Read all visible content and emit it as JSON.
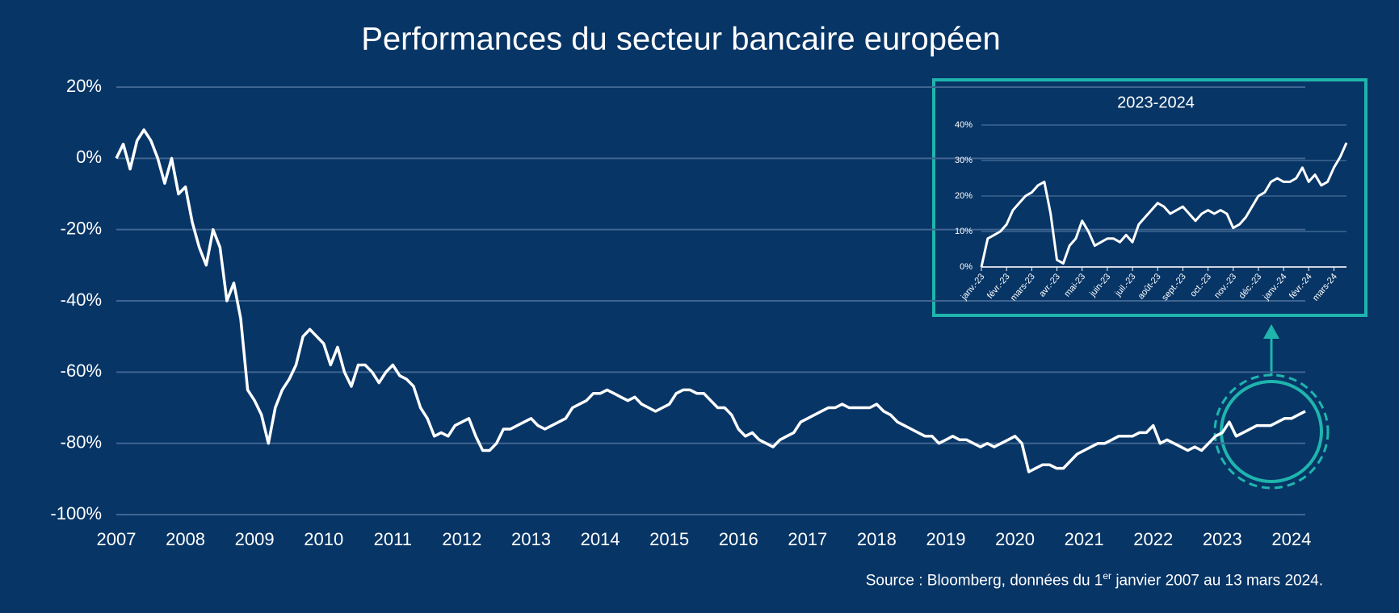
{
  "chart_data": [
    {
      "type": "line",
      "title": "Performances du secteur bancaire européen",
      "x": [
        2007.0,
        2007.1,
        2007.2,
        2007.3,
        2007.4,
        2007.5,
        2007.6,
        2007.7,
        2007.8,
        2007.9,
        2008.0,
        2008.1,
        2008.2,
        2008.3,
        2008.4,
        2008.5,
        2008.6,
        2008.7,
        2008.8,
        2008.9,
        2009.0,
        2009.1,
        2009.2,
        2009.3,
        2009.4,
        2009.5,
        2009.6,
        2009.7,
        2009.8,
        2009.9,
        2010.0,
        2010.1,
        2010.2,
        2010.3,
        2010.4,
        2010.5,
        2010.6,
        2010.7,
        2010.8,
        2010.9,
        2011.0,
        2011.1,
        2011.2,
        2011.3,
        2011.4,
        2011.5,
        2011.6,
        2011.7,
        2011.8,
        2011.9,
        2012.0,
        2012.1,
        2012.2,
        2012.3,
        2012.4,
        2012.5,
        2012.6,
        2012.7,
        2012.8,
        2012.9,
        2013.0,
        2013.1,
        2013.2,
        2013.3,
        2013.4,
        2013.5,
        2013.6,
        2013.7,
        2013.8,
        2013.9,
        2014.0,
        2014.1,
        2014.2,
        2014.3,
        2014.4,
        2014.5,
        2014.6,
        2014.7,
        2014.8,
        2014.9,
        2015.0,
        2015.1,
        2015.2,
        2015.3,
        2015.4,
        2015.5,
        2015.6,
        2015.7,
        2015.8,
        2015.9,
        2016.0,
        2016.1,
        2016.2,
        2016.3,
        2016.4,
        2016.5,
        2016.6,
        2016.7,
        2016.8,
        2016.9,
        2017.0,
        2017.1,
        2017.2,
        2017.3,
        2017.4,
        2017.5,
        2017.6,
        2017.7,
        2017.8,
        2017.9,
        2018.0,
        2018.1,
        2018.2,
        2018.3,
        2018.4,
        2018.5,
        2018.6,
        2018.7,
        2018.8,
        2018.9,
        2019.0,
        2019.1,
        2019.2,
        2019.3,
        2019.4,
        2019.5,
        2019.6,
        2019.7,
        2019.8,
        2019.9,
        2020.0,
        2020.1,
        2020.2,
        2020.3,
        2020.4,
        2020.5,
        2020.6,
        2020.7,
        2020.8,
        2020.9,
        2021.0,
        2021.1,
        2021.2,
        2021.3,
        2021.4,
        2021.5,
        2021.6,
        2021.7,
        2021.8,
        2021.9,
        2022.0,
        2022.1,
        2022.2,
        2022.3,
        2022.4,
        2022.5,
        2022.6,
        2022.7,
        2022.8,
        2022.9,
        2023.0,
        2023.1,
        2023.2,
        2023.3,
        2023.4,
        2023.5,
        2023.6,
        2023.7,
        2023.8,
        2023.9,
        2024.0,
        2024.1,
        2024.2
      ],
      "series": [
        {
          "color": "#ffffff",
          "values": [
            0,
            4,
            -3,
            5,
            8,
            5,
            0,
            -7,
            0,
            -10,
            -8,
            -18,
            -25,
            -30,
            -20,
            -25,
            -40,
            -35,
            -45,
            -65,
            -68,
            -72,
            -80,
            -70,
            -65,
            -62,
            -58,
            -50,
            -48,
            -50,
            -52,
            -58,
            -53,
            -60,
            -64,
            -58,
            -58,
            -60,
            -63,
            -60,
            -58,
            -61,
            -62,
            -64,
            -70,
            -73,
            -78,
            -77,
            -78,
            -75,
            -74,
            -73,
            -78,
            -82,
            -82,
            -80,
            -76,
            -76,
            -75,
            -74,
            -73,
            -75,
            -76,
            -75,
            -74,
            -73,
            -70,
            -69,
            -68,
            -66,
            -66,
            -65,
            -66,
            -67,
            -68,
            -67,
            -69,
            -70,
            -71,
            -70,
            -69,
            -66,
            -65,
            -65,
            -66,
            -66,
            -68,
            -70,
            -70,
            -72,
            -76,
            -78,
            -77,
            -79,
            -80,
            -81,
            -79,
            -78,
            -77,
            -74,
            -73,
            -72,
            -71,
            -70,
            -70,
            -69,
            -70,
            -70,
            -70,
            -70,
            -69,
            -71,
            -72,
            -74,
            -75,
            -76,
            -77,
            -78,
            -78,
            -80,
            -79,
            -78,
            -79,
            -79,
            -80,
            -81,
            -80,
            -81,
            -80,
            -79,
            -78,
            -80,
            -88,
            -87,
            -86,
            -86,
            -87,
            -87,
            -85,
            -83,
            -82,
            -81,
            -80,
            -80,
            -79,
            -78,
            -78,
            -78,
            -77,
            -77,
            -75,
            -80,
            -79,
            -80,
            -81,
            -82,
            -81,
            -82,
            -80,
            -78,
            -77,
            -74,
            -78,
            -77,
            -76,
            -75,
            -75,
            -75,
            -74,
            -73,
            -73,
            -72,
            -71
          ]
        }
      ],
      "xlim": [
        2007,
        2024.2
      ],
      "xticks": [
        2007,
        2008,
        2009,
        2010,
        2011,
        2012,
        2013,
        2014,
        2015,
        2016,
        2017,
        2018,
        2019,
        2020,
        2021,
        2022,
        2023,
        2024
      ],
      "ylim": [
        -100,
        20
      ],
      "yticks": [
        {
          "value": -100,
          "label": "-100%"
        },
        {
          "value": -80,
          "label": "-80%"
        },
        {
          "value": -60,
          "label": "-60%"
        },
        {
          "value": -40,
          "label": "-40%"
        },
        {
          "value": -20,
          "label": "-20%"
        },
        {
          "value": 0,
          "label": "0%"
        },
        {
          "value": 20,
          "label": "20%"
        }
      ],
      "grid": true,
      "source": {
        "before": "Source : Bloomberg, données du 1",
        "sup": "er",
        "after": " janvier 2007 au 13 mars 2024."
      }
    },
    {
      "type": "line",
      "title": "2023-2024",
      "categories": [
        "janv.-23",
        null,
        null,
        null,
        "févr.-23",
        null,
        null,
        null,
        "mars-23",
        null,
        null,
        null,
        "avr.-23",
        null,
        null,
        null,
        "mai-23",
        null,
        null,
        null,
        "juin-23",
        null,
        null,
        null,
        "juil.-23",
        null,
        null,
        null,
        "août-23",
        null,
        null,
        null,
        "sept.-23",
        null,
        null,
        null,
        "oct.-23",
        null,
        null,
        null,
        "nov.-23",
        null,
        null,
        null,
        "déc.-23",
        null,
        null,
        null,
        "janv.-24",
        null,
        null,
        null,
        "févr.-24",
        null,
        null,
        null,
        "mars-24",
        null,
        null
      ],
      "series": [
        {
          "color": "#ffffff",
          "values": [
            0,
            8,
            9,
            10,
            12,
            16,
            18,
            20,
            21,
            23,
            24,
            15,
            2,
            1,
            6,
            8,
            13,
            10,
            6,
            7,
            8,
            8,
            7,
            9,
            7,
            12,
            14,
            16,
            18,
            17,
            15,
            16,
            17,
            15,
            13,
            15,
            16,
            15,
            16,
            15,
            11,
            12,
            14,
            17,
            20,
            21,
            24,
            25,
            24,
            24,
            25,
            28,
            24,
            26,
            23,
            24,
            28,
            31,
            35
          ]
        }
      ],
      "ylim": [
        0,
        40
      ],
      "yticks": [
        {
          "value": 0,
          "label": "0%"
        },
        {
          "value": 10,
          "label": "10%"
        },
        {
          "value": 20,
          "label": "20%"
        },
        {
          "value": 30,
          "label": "30%"
        },
        {
          "value": 40,
          "label": "40%"
        }
      ],
      "grid": true
    }
  ]
}
